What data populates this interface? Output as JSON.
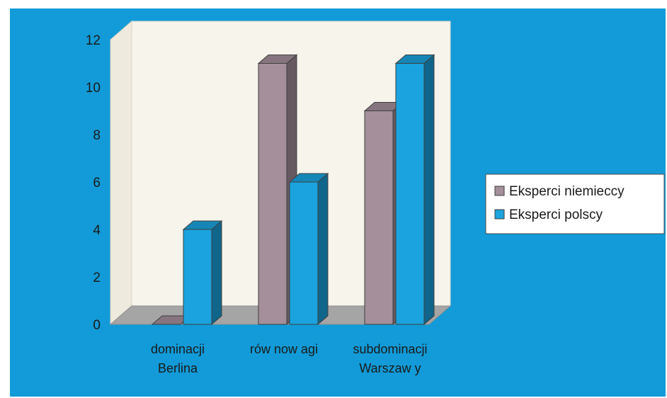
{
  "chart_data": {
    "type": "bar",
    "categories": [
      [
        "dominacji",
        "Berlina"
      ],
      [
        "rów now agi"
      ],
      [
        "subdominacji",
        "Warszaw y"
      ]
    ],
    "series": [
      {
        "name": "Eksperci niemieccy",
        "values": [
          0,
          11,
          9
        ],
        "color": "#a48f9a"
      },
      {
        "name": "Eksperci polscy",
        "values": [
          4,
          6,
          11
        ],
        "color": "#1aa3de"
      }
    ],
    "ylim": [
      0,
      12
    ],
    "yticks": [
      0,
      2,
      4,
      6,
      8,
      10,
      12
    ],
    "legend_position": "right",
    "grid": false,
    "background_color": "#129bd8",
    "plot_wall_color": "#f7f4ec"
  }
}
